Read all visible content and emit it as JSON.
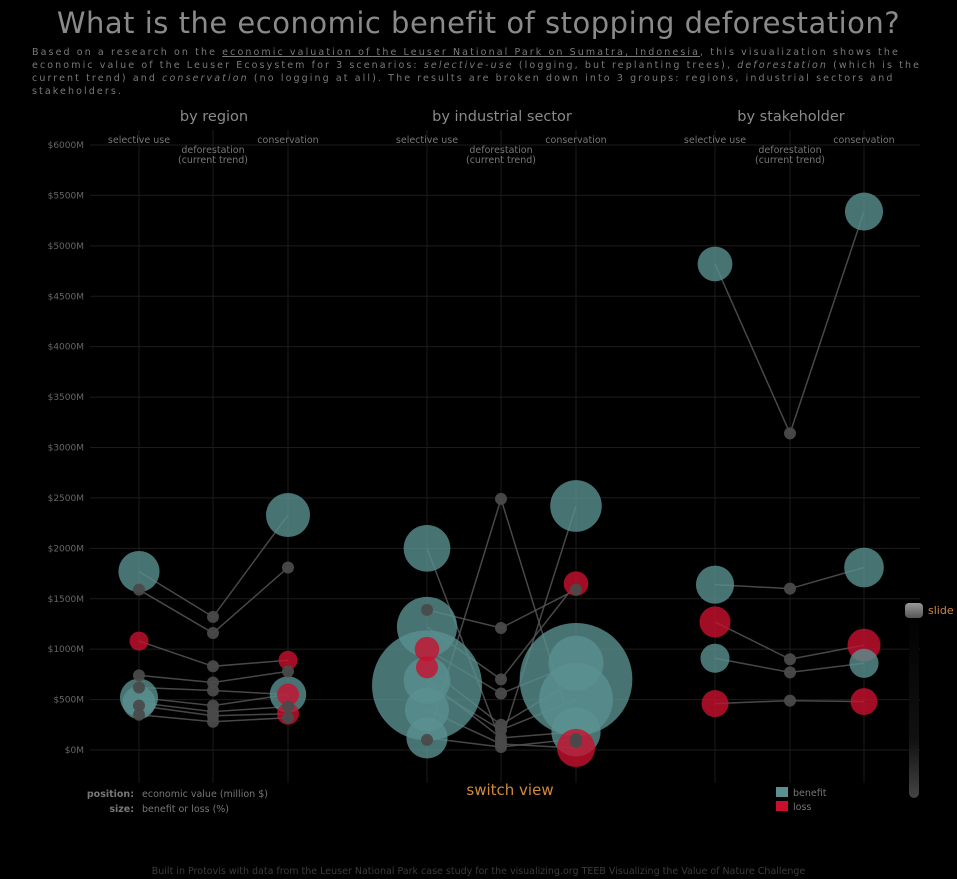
{
  "header": {
    "title": "What is the economic benefit of stopping deforestation?",
    "desc_part1": "Based on a research on the ",
    "desc_link": "economic valuation of the Leuser National Park on Sumatra, Indonesia",
    "desc_part2": ", this visualization shows the economic value of the Leuser Ecosystem for 3 scenarios: ",
    "desc_em1": "selective-use",
    "desc_part3": " (logging, but replanting trees), ",
    "desc_em2": "deforestation",
    "desc_part4": " (which is the current trend) and ",
    "desc_em3": "conservation",
    "desc_part5": " (no logging at all). The results are broken down into 3 groups: regions, industrial sectors and stakeholders."
  },
  "legend": {
    "position_key": "position:",
    "position_val": "economic value (million $)",
    "size_key": "size:",
    "size_val": "benefit or loss (%)",
    "benefit": "benefit",
    "loss": "loss"
  },
  "controls": {
    "switch_view": "switch view",
    "slider_label": "slide"
  },
  "footer": "Built in Protovis with data from the Leuser National Park case study for the visualizing.org TEEB Visualizing the Value of Nature Challenge",
  "colors": {
    "background": "#000000",
    "benefit": "#5a9090",
    "loss": "#c8102e",
    "neutral": "#4a4a4a",
    "line": "#555555",
    "grid": "#1c1c1c",
    "accent": "#d08a3c"
  },
  "chart_data": {
    "type": "scatter",
    "y_axis": {
      "ylim": [
        -300,
        6100
      ],
      "ticks": [
        0,
        500,
        1000,
        1500,
        2000,
        2500,
        3000,
        3500,
        4000,
        4500,
        5000,
        5500,
        6000
      ],
      "tick_labels": [
        "$0M",
        "$500M",
        "$1000M",
        "$1500M",
        "$2000M",
        "$2500M",
        "$3000M",
        "$3500M",
        "$4000M",
        "$4500M",
        "$5000M",
        "$5500M",
        "$6000M"
      ]
    },
    "scenarios": [
      {
        "lines": [
          "selective use"
        ]
      },
      {
        "lines": [
          "deforestation",
          "(current trend)"
        ]
      },
      {
        "lines": [
          "conservation"
        ]
      }
    ],
    "panels": [
      {
        "title": "by region",
        "series": [
          {
            "values": [
              1770,
              1320,
              2330
            ],
            "sizes": [
              14,
              0,
              16
            ]
          },
          {
            "values": [
              1590,
              1160,
              1810
            ],
            "sizes": [
              0,
              0,
              0
            ]
          },
          {
            "values": [
              1080,
              830,
              890
            ],
            "sizes": [
              -3,
              0,
              -3
            ]
          },
          {
            "values": [
              740,
              670,
              780
            ],
            "sizes": [
              0,
              0,
              0
            ]
          },
          {
            "values": [
              620,
              590,
              550
            ],
            "sizes": [
              0,
              0,
              -4
            ]
          },
          {
            "values": [
              520,
              440,
              550
            ],
            "sizes": [
              12,
              0,
              11
            ]
          },
          {
            "values": [
              470,
              380,
              430
            ],
            "sizes": [
              9,
              0,
              0
            ]
          },
          {
            "values": [
              440,
              340,
              360
            ],
            "sizes": [
              0,
              0,
              -4
            ]
          },
          {
            "values": [
              350,
              280,
              320
            ],
            "sizes": [
              0,
              0,
              0
            ]
          }
        ]
      },
      {
        "title": "by industrial sector",
        "series": [
          {
            "values": [
              2000,
              80,
              2420
            ],
            "sizes": [
              18,
              0,
              22
            ]
          },
          {
            "values": [
              1390,
              1210,
              1590
            ],
            "sizes": [
              0,
              0,
              0
            ]
          },
          {
            "values": [
              1220,
              700,
              1650
            ],
            "sizes": [
              30,
              0,
              -5
            ]
          },
          {
            "values": [
              1000,
              560,
              860
            ],
            "sizes": [
              -5,
              0,
              25
            ]
          },
          {
            "values": [
              820,
              250,
              700
            ],
            "sizes": [
              -4,
              0,
              105
            ]
          },
          {
            "values": [
              640,
              200,
              500
            ],
            "sizes": [
              100,
              0,
              45
            ]
          },
          {
            "values": [
              690,
              120,
              180
            ],
            "sizes": [
              18,
              0,
              20
            ]
          },
          {
            "values": [
              400,
              60,
              20
            ],
            "sizes": [
              16,
              0,
              -12
            ]
          },
          {
            "values": [
              120,
              30,
              110
            ],
            "sizes": [
              14,
              0,
              0
            ]
          },
          {
            "values": [
              100,
              2490,
              80
            ],
            "sizes": [
              0,
              0,
              0
            ]
          }
        ]
      },
      {
        "title": "by stakeholder",
        "series": [
          {
            "values": [
              4820,
              3140,
              5340
            ],
            "sizes": [
              10,
              0,
              12
            ]
          },
          {
            "values": [
              1640,
              1600,
              1810
            ],
            "sizes": [
              12,
              0,
              13
            ]
          },
          {
            "values": [
              1270,
              900,
              1040
            ],
            "sizes": [
              -8,
              0,
              -9
            ]
          },
          {
            "values": [
              910,
              770,
              860
            ],
            "sizes": [
              7,
              0,
              7
            ]
          },
          {
            "values": [
              460,
              490,
              480
            ],
            "sizes": [
              -6,
              0,
              -6
            ]
          }
        ]
      }
    ]
  }
}
